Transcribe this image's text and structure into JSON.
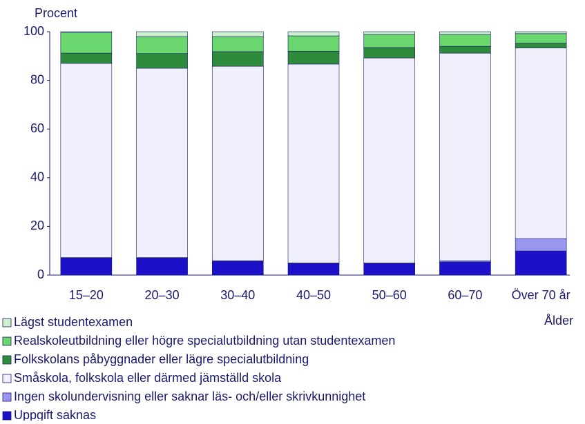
{
  "chart_data": {
    "type": "stacked_bar",
    "y_label": "Procent",
    "x_label": "Ålder",
    "categories": [
      "15–20",
      "20–30",
      "30–40",
      "40–50",
      "50–60",
      "60–70",
      "Över 70 år"
    ],
    "series": [
      {
        "name": "Uppgift saknas",
        "color": "#1c10c8",
        "values": [
          7,
          7,
          5.7,
          4.8,
          4.8,
          5.4,
          9.9
        ]
      },
      {
        "name": "Ingen skolundervisning eller saknar läs- och/eller skrivkunnighet",
        "color": "#9a96ee",
        "values": [
          0.2,
          0.2,
          0.2,
          0.2,
          0.2,
          0.5,
          5.1
        ]
      },
      {
        "name": "Småskola, folkskola eller därmed jämställd skola",
        "color": "#f0f0fc",
        "values": [
          79.8,
          77.8,
          79.9,
          81.7,
          84.2,
          85.3,
          78.3
        ]
      },
      {
        "name": "Folkskolans påbyggnader eller lägre specialutbildning",
        "color": "#2e8b3c",
        "values": [
          4.2,
          6,
          6,
          5.3,
          4.3,
          2.8,
          2
        ]
      },
      {
        "name": "Realskoleutbildning eller högre specialutbildning utan studentexamen",
        "color": "#6ad66e",
        "values": [
          8.5,
          7,
          6.2,
          6.3,
          5.4,
          4.9,
          3.9
        ]
      },
      {
        "name": "Lägst studentexamen",
        "color": "#cdf0cd",
        "values": [
          0.3,
          2,
          2,
          1.7,
          1.1,
          1.1,
          0.8
        ]
      }
    ],
    "ylim": [
      0,
      100
    ],
    "yticks": [
      0,
      20,
      40,
      60,
      80,
      100
    ]
  }
}
